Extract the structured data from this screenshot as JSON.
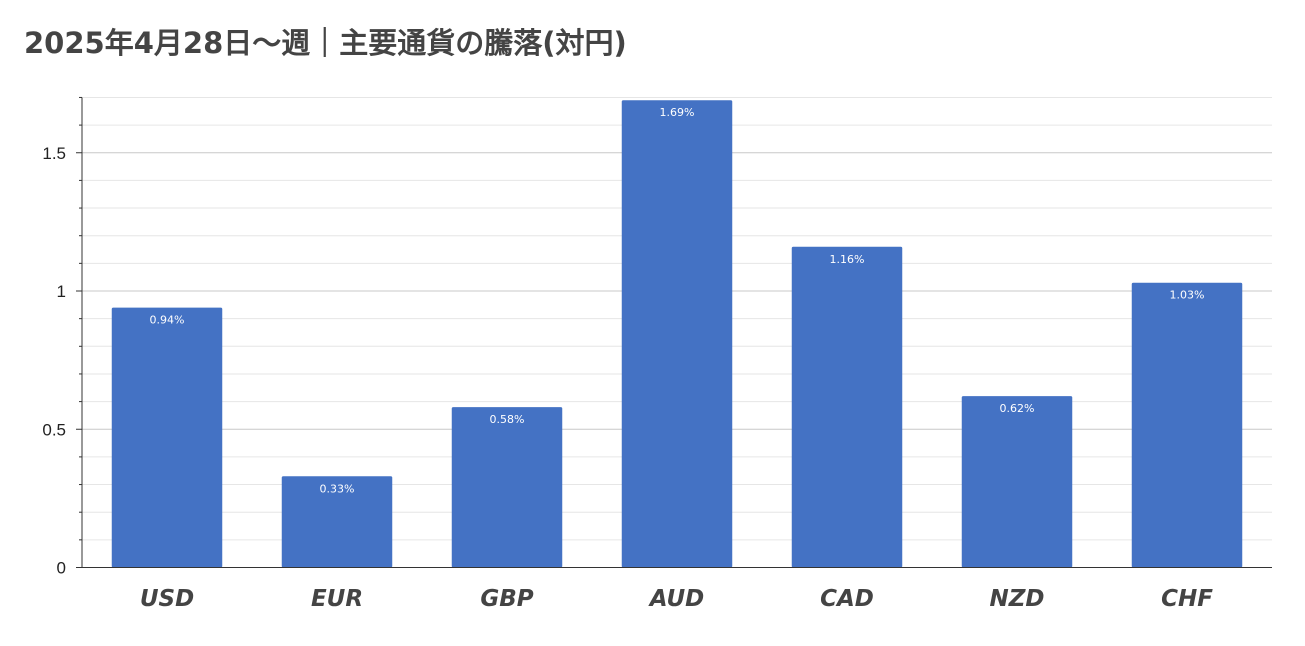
{
  "chart_data": {
    "type": "bar",
    "title": "2025年4月28日〜週｜主要通貨の騰落(対円)",
    "categories": [
      "USD",
      "EUR",
      "GBP",
      "AUD",
      "CAD",
      "NZD",
      "CHF"
    ],
    "values": [
      0.94,
      0.33,
      0.58,
      1.69,
      1.16,
      0.62,
      1.03
    ],
    "data_labels": [
      "0.94%",
      "0.33%",
      "0.58%",
      "1.69%",
      "1.16%",
      "0.62%",
      "1.03%"
    ],
    "yticks": [
      "0",
      "0.5",
      "1",
      "1.5"
    ],
    "ylim": [
      0,
      1.7
    ],
    "bar_color": "#4472c4",
    "grid": true,
    "legend": "none"
  }
}
